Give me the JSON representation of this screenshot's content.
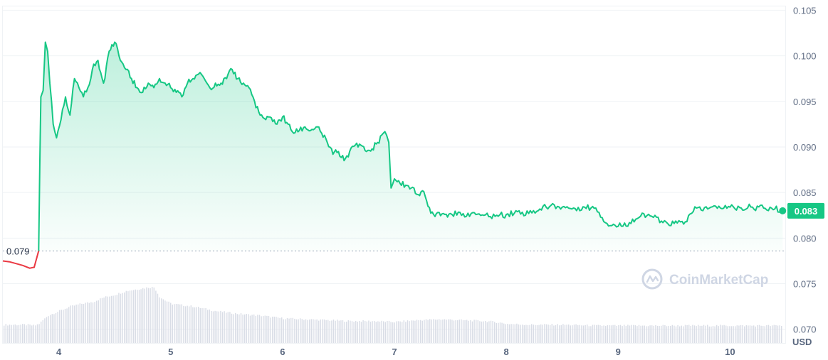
{
  "chart_data": {
    "type": "area",
    "currency_label": "USD",
    "watermark": "CoinMarketCap",
    "ylim": [
      0.0685,
      0.1055
    ],
    "xlim": [
      3.5,
      10.5
    ],
    "y_ticks": [
      "0.105",
      "0.100",
      "0.095",
      "0.090",
      "0.085",
      "0.080",
      "0.075",
      "0.070"
    ],
    "y_tick_values": [
      0.105,
      0.1,
      0.095,
      0.09,
      0.085,
      0.08,
      0.075,
      0.07
    ],
    "x_ticks": [
      "4",
      "5",
      "6",
      "7",
      "8",
      "9",
      "10"
    ],
    "x_tick_values": [
      4,
      5,
      6,
      7,
      8,
      9,
      10
    ],
    "reference_price": 0.0786,
    "reference_label": "0.079",
    "current_price": 0.083,
    "current_label": "0.083",
    "colors": {
      "up": "#16c784",
      "down": "#ea3943",
      "volume": "#d9dde6",
      "grid": "#eff2f5"
    },
    "pre_series": {
      "x": [
        3.5,
        3.56,
        3.62,
        3.68,
        3.74,
        3.78,
        3.82
      ],
      "y": [
        0.0775,
        0.0774,
        0.0772,
        0.077,
        0.0767,
        0.0768,
        0.0786
      ]
    },
    "series": {
      "x": [
        3.82,
        3.83,
        3.84,
        3.86,
        3.88,
        3.9,
        3.92,
        3.95,
        3.98,
        4.02,
        4.06,
        4.1,
        4.14,
        4.18,
        4.22,
        4.26,
        4.3,
        4.35,
        4.4,
        4.45,
        4.5,
        4.55,
        4.6,
        4.65,
        4.7,
        4.75,
        4.8,
        4.85,
        4.9,
        4.95,
        5.0,
        5.05,
        5.1,
        5.15,
        5.2,
        5.25,
        5.3,
        5.35,
        5.4,
        5.45,
        5.5,
        5.55,
        5.6,
        5.65,
        5.7,
        5.75,
        5.8,
        5.85,
        5.9,
        5.95,
        6.0,
        6.05,
        6.1,
        6.15,
        6.2,
        6.25,
        6.3,
        6.35,
        6.4,
        6.45,
        6.5,
        6.55,
        6.6,
        6.65,
        6.7,
        6.75,
        6.8,
        6.85,
        6.9,
        6.93,
        6.95,
        6.97,
        7.0,
        7.05,
        7.1,
        7.15,
        7.2,
        7.25,
        7.3,
        7.35,
        7.4,
        7.45,
        7.5,
        7.6,
        7.7,
        7.8,
        7.9,
        8.0,
        8.1,
        8.2,
        8.3,
        8.4,
        8.5,
        8.6,
        8.7,
        8.8,
        8.9,
        9.0,
        9.1,
        9.2,
        9.3,
        9.4,
        9.5,
        9.6,
        9.7,
        9.8,
        9.9,
        10.0,
        10.1,
        10.2,
        10.3,
        10.4,
        10.47
      ],
      "y": [
        0.0786,
        0.088,
        0.0955,
        0.0962,
        0.1015,
        0.1005,
        0.097,
        0.0925,
        0.091,
        0.093,
        0.0955,
        0.0935,
        0.0975,
        0.0965,
        0.0955,
        0.0965,
        0.0985,
        0.0995,
        0.097,
        0.1005,
        0.1015,
        0.0995,
        0.0985,
        0.0975,
        0.0965,
        0.096,
        0.097,
        0.0965,
        0.0975,
        0.097,
        0.0965,
        0.096,
        0.0955,
        0.097,
        0.0975,
        0.098,
        0.0975,
        0.0965,
        0.097,
        0.097,
        0.0975,
        0.0985,
        0.0975,
        0.097,
        0.0965,
        0.095,
        0.0935,
        0.093,
        0.0932,
        0.0925,
        0.0933,
        0.0925,
        0.0915,
        0.0918,
        0.0922,
        0.0918,
        0.0922,
        0.0915,
        0.0905,
        0.0892,
        0.0895,
        0.0885,
        0.0895,
        0.0902,
        0.0902,
        0.0895,
        0.0898,
        0.0905,
        0.0915,
        0.0913,
        0.0905,
        0.0855,
        0.0865,
        0.086,
        0.0858,
        0.0855,
        0.0848,
        0.0852,
        0.0835,
        0.0826,
        0.0828,
        0.0826,
        0.0827,
        0.0825,
        0.0828,
        0.0825,
        0.0824,
        0.0826,
        0.0829,
        0.0827,
        0.0832,
        0.0836,
        0.0834,
        0.0833,
        0.0834,
        0.0833,
        0.0816,
        0.0813,
        0.0817,
        0.0824,
        0.0824,
        0.0817,
        0.0816,
        0.0818,
        0.0833,
        0.0832,
        0.0835,
        0.0834,
        0.0833,
        0.0834,
        0.0833,
        0.0832,
        0.083
      ]
    },
    "volume": {
      "x": [
        3.5,
        3.6,
        3.7,
        3.78,
        3.82,
        3.9,
        4.0,
        4.1,
        4.2,
        4.3,
        4.4,
        4.5,
        4.6,
        4.7,
        4.75,
        4.8,
        4.85,
        4.9,
        5.0,
        5.2,
        5.4,
        5.6,
        5.8,
        6.0,
        6.2,
        6.4,
        6.6,
        6.8,
        7.0,
        7.2,
        7.4,
        7.6,
        7.8,
        7.9,
        8.0,
        8.2,
        8.5,
        8.8,
        9.0,
        9.5,
        10.0,
        10.47
      ],
      "y": [
        0.0705,
        0.0705,
        0.0705,
        0.0704,
        0.0706,
        0.0715,
        0.072,
        0.0725,
        0.0728,
        0.073,
        0.0735,
        0.0738,
        0.0742,
        0.0744,
        0.0745,
        0.0746,
        0.0746,
        0.0735,
        0.0728,
        0.0725,
        0.072,
        0.0717,
        0.0715,
        0.0712,
        0.0711,
        0.071,
        0.0709,
        0.0709,
        0.0708,
        0.071,
        0.0711,
        0.071,
        0.0709,
        0.0708,
        0.0706,
        0.0705,
        0.0705,
        0.0704,
        0.0704,
        0.0704,
        0.0704,
        0.0704
      ]
    }
  }
}
